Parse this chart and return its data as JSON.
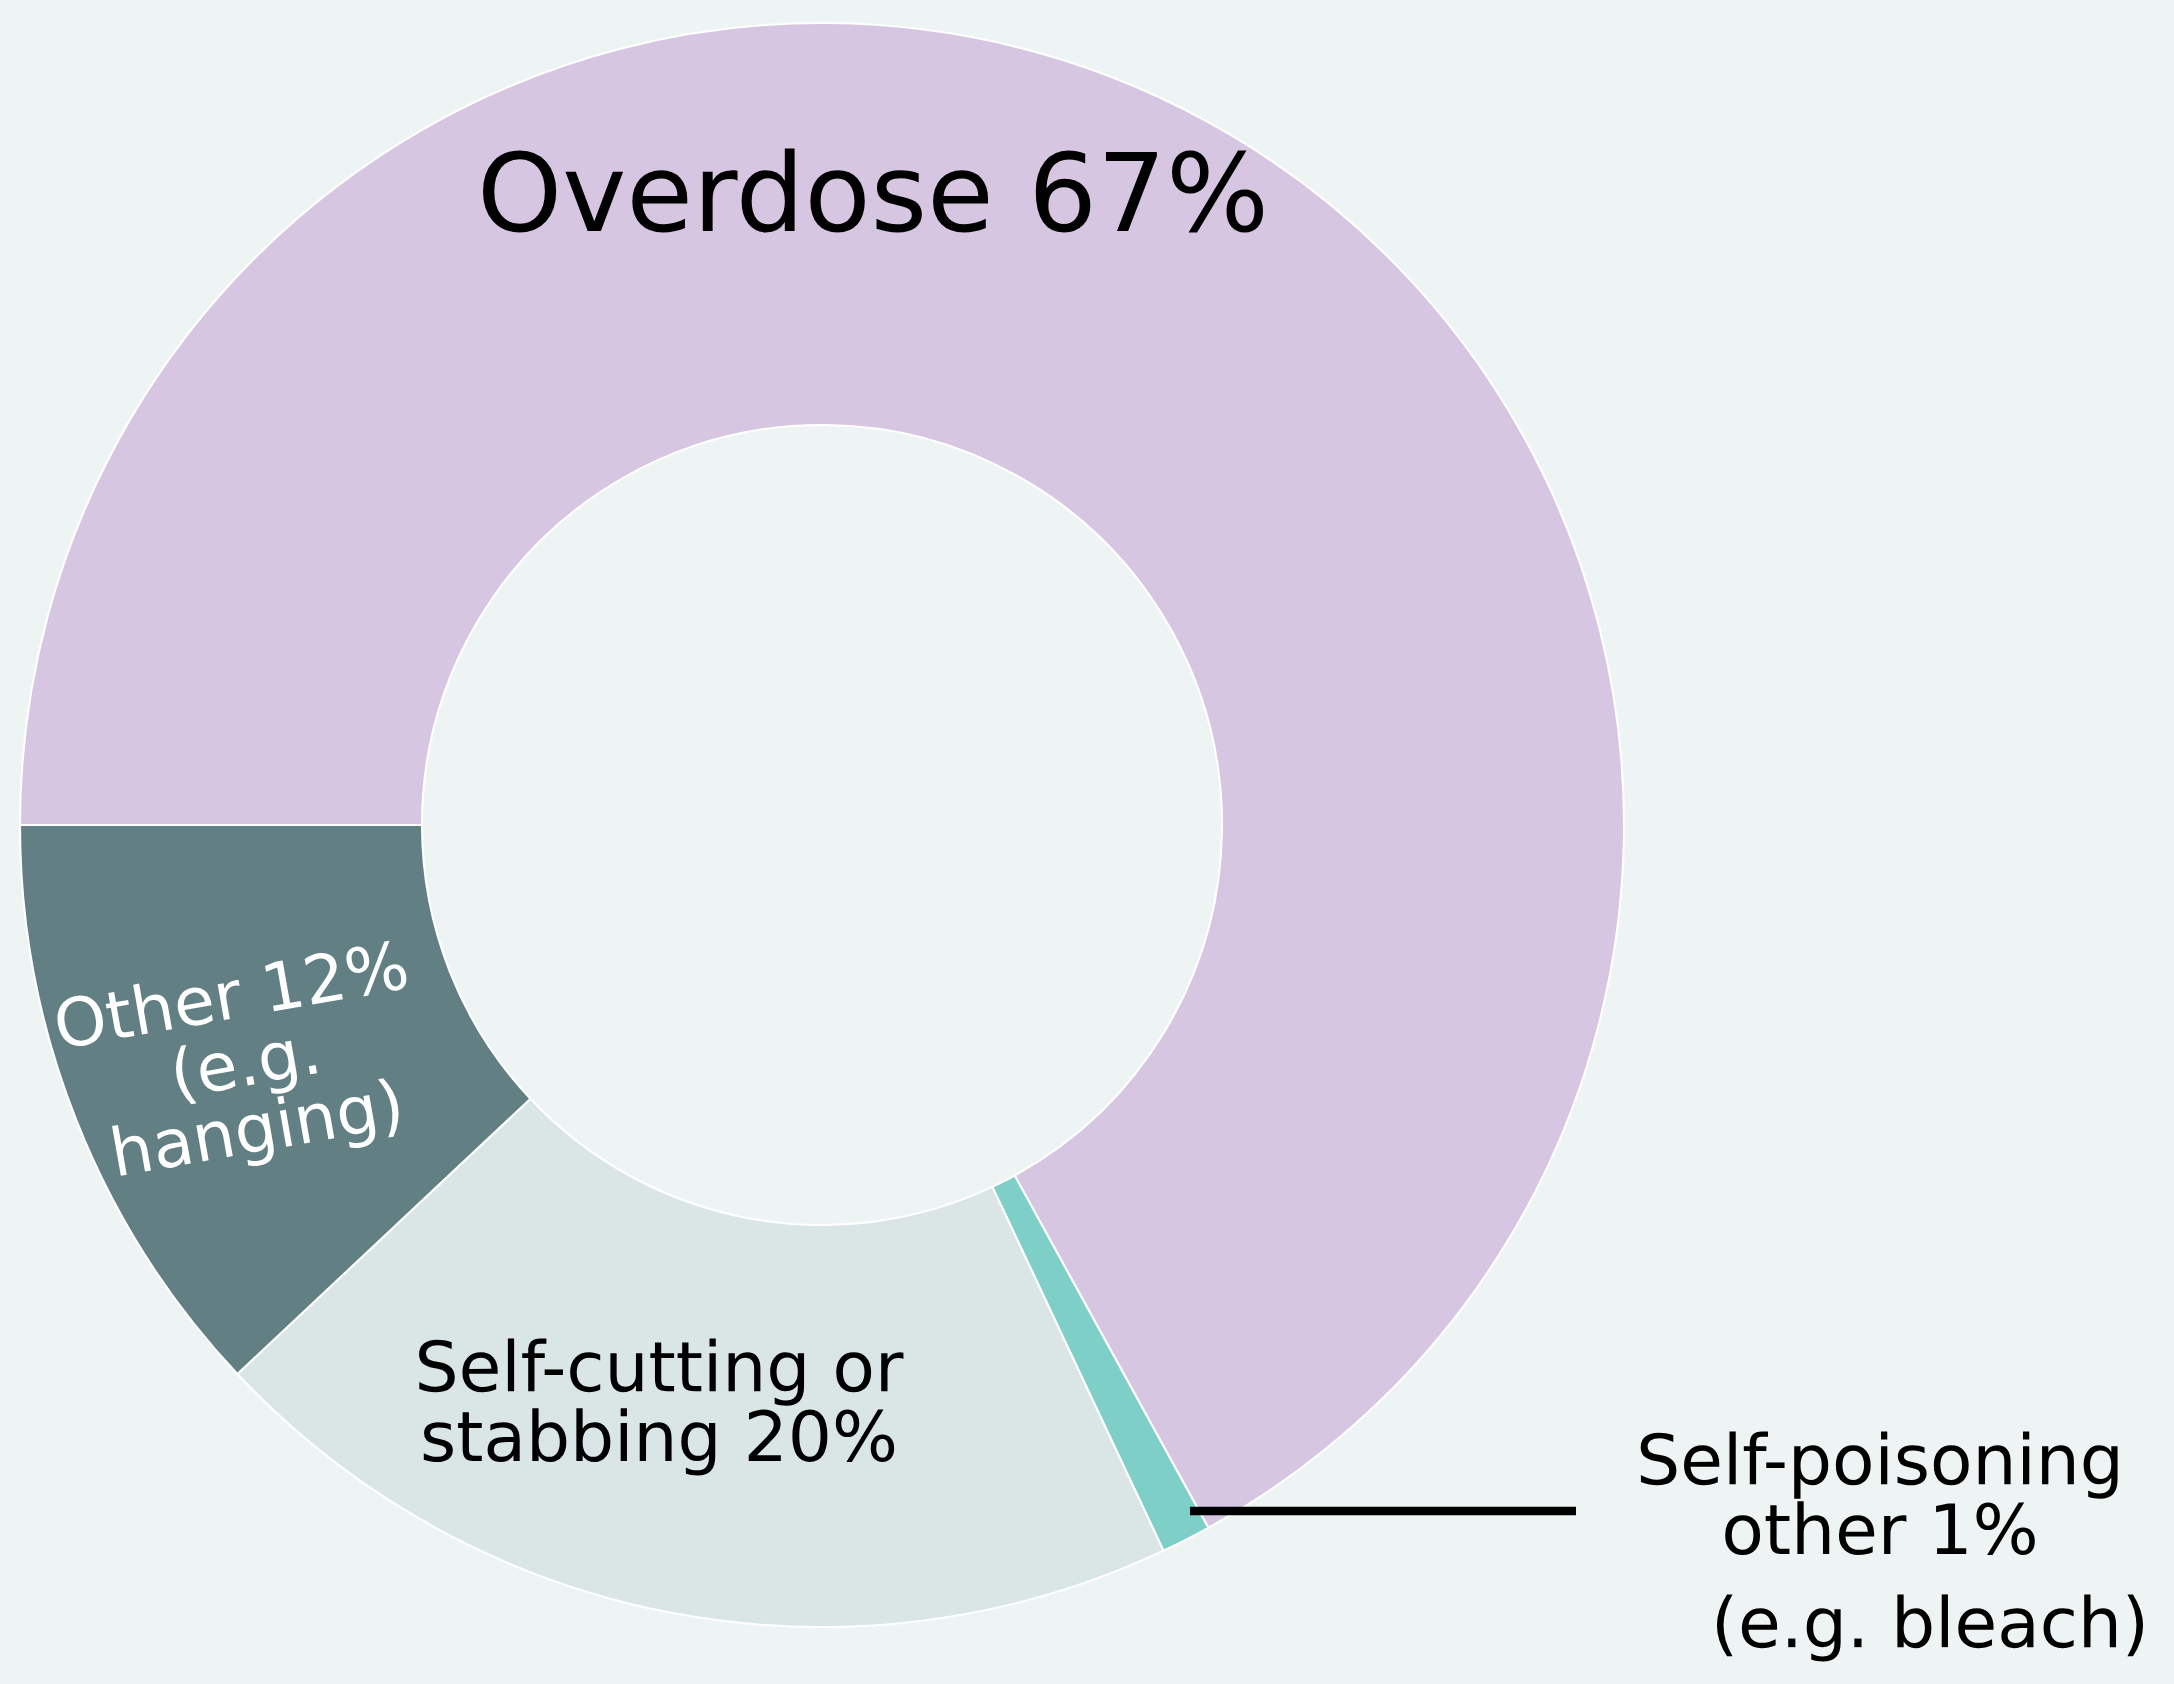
{
  "chart_data": {
    "type": "donut",
    "categories": [
      "Overdose",
      "Self-poisoning\nother",
      "Self-cutting or\nstabbing",
      "Other"
    ],
    "values": [
      67,
      1,
      20,
      12
    ],
    "colors": [
      "#d6c6e1",
      "#7fcfc9",
      "#dae5e6",
      "#627f83"
    ],
    "annotations": [
      "(e.g. bleach)",
      "(e.g.\nhanging)"
    ],
    "value_labels": [
      "67%",
      "1%",
      "20%",
      "12%"
    ]
  }
}
